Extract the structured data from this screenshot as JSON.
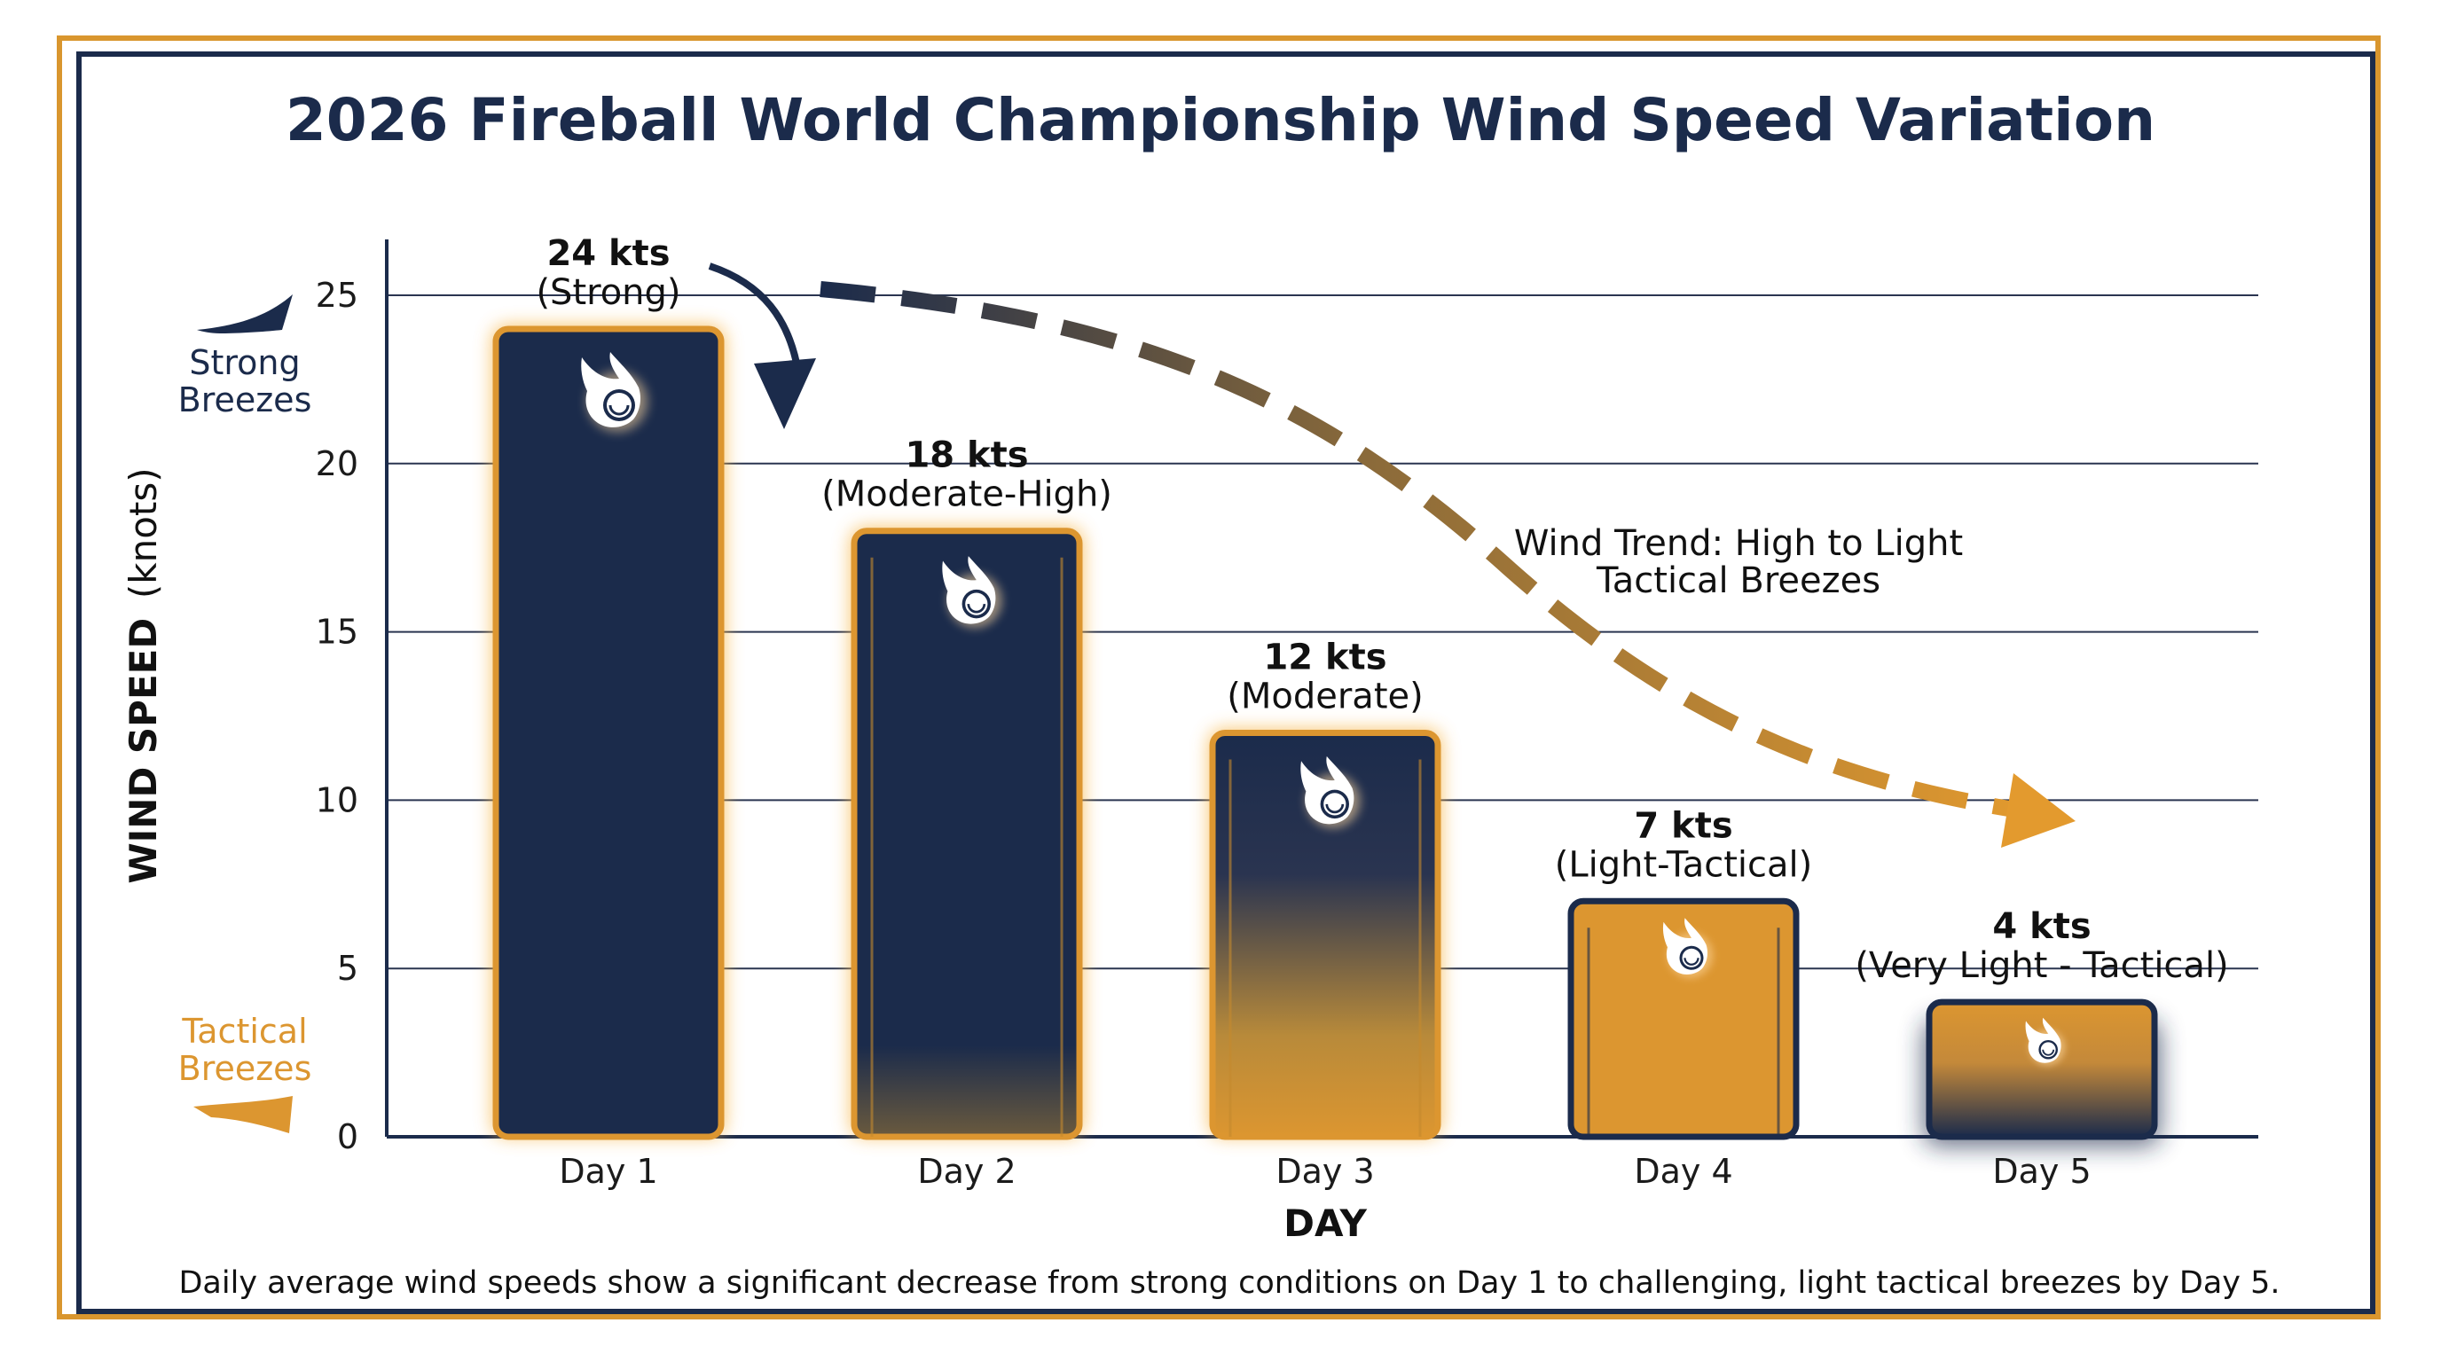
{
  "chart_data": {
    "type": "bar",
    "title": "2026 Fireball World Championship Wind Speed Variation",
    "xlabel": "DAY",
    "ylabel_bold": "WIND SPEED",
    "ylabel_unit": "(knots)",
    "ylim": [
      0,
      25
    ],
    "yticks": [
      0,
      5,
      10,
      15,
      20,
      25
    ],
    "grid": true,
    "categories": [
      "Day 1",
      "Day 2",
      "Day 3",
      "Day 4",
      "Day 5"
    ],
    "values": [
      24,
      18,
      12,
      7,
      4
    ],
    "value_labels": [
      "24 kts",
      "18 kts",
      "12 kts",
      "7 kts",
      "4 kts"
    ],
    "condition_labels": [
      "(Strong)",
      "(Moderate-High)",
      "(Moderate)",
      "(Light-Tactical)",
      "(Very Light - Tactical)"
    ],
    "trend_label": [
      "Wind Trend: High to Light",
      "Tactical Breezes"
    ],
    "legend_top": [
      "Strong",
      "Breezes"
    ],
    "legend_bottom": [
      "Tactical",
      "Breezes"
    ],
    "caption": "Daily average wind speeds show a significant decrease from strong conditions on Day 1 to challenging, light tactical breezes by Day 5."
  },
  "colors": {
    "navy": "#1b2b4b",
    "orange": "#dc9630",
    "glow": "#f7b648",
    "grid": "#2a3550"
  },
  "icons": [
    "fireball-icon",
    "flag-navy-icon",
    "flag-orange-icon",
    "curved-arrow-icon",
    "trend-arrow-icon"
  ]
}
